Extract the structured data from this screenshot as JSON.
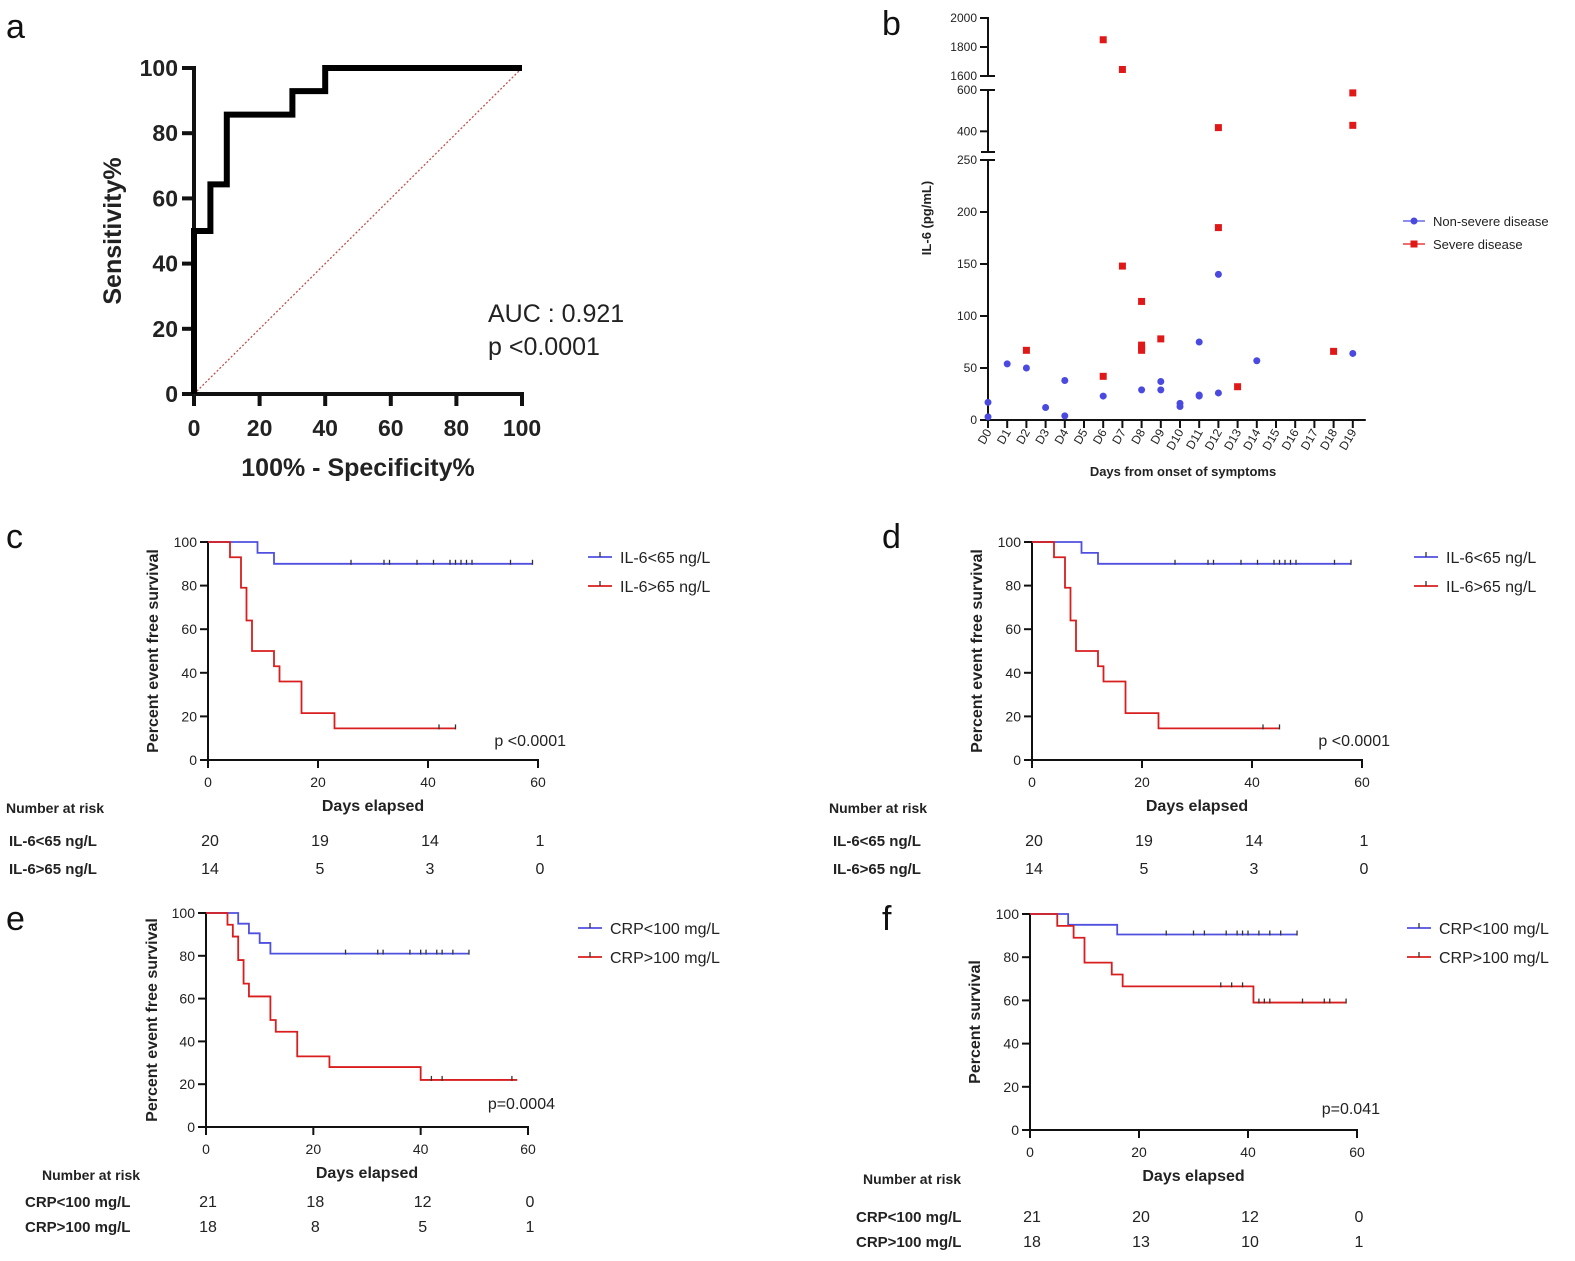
{
  "chart_data": [
    {
      "panel": "a",
      "type": "line",
      "xlabel": "100% - Specificity%",
      "ylabel": "Sensitivity%",
      "xlim": [
        0,
        100
      ],
      "ylim": [
        0,
        100
      ],
      "xticks": [
        0,
        20,
        40,
        60,
        80,
        100
      ],
      "yticks": [
        0,
        20,
        40,
        60,
        80,
        100
      ],
      "roc": [
        [
          0,
          0
        ],
        [
          0,
          50
        ],
        [
          5,
          50
        ],
        [
          5,
          64.3
        ],
        [
          10,
          64.3
        ],
        [
          10,
          85.7
        ],
        [
          30,
          85.7
        ],
        [
          30,
          92.9
        ],
        [
          40,
          92.9
        ],
        [
          40,
          100
        ],
        [
          100,
          100
        ]
      ],
      "reference_line": [
        [
          0,
          0
        ],
        [
          100,
          100
        ]
      ],
      "annotations": [
        "AUC : 0.921",
        "p <0.0001"
      ],
      "colors": {
        "roc": "#000000",
        "reference": "#c0504d"
      }
    },
    {
      "panel": "b",
      "type": "scatter",
      "xlabel": "Days from onset of symptoms",
      "ylabel": "IL-6 (pg/mL)",
      "categories": [
        "D0",
        "D1",
        "D2",
        "D3",
        "D4",
        "D5",
        "D6",
        "D7",
        "D8",
        "D9",
        "D10",
        "D11",
        "D12",
        "D13",
        "D14",
        "D15",
        "D16",
        "D17",
        "D18",
        "D19"
      ],
      "axis_segments": [
        {
          "range": [
            0,
            250
          ],
          "ticks": [
            0,
            50,
            100,
            150,
            200,
            250
          ]
        },
        {
          "range": [
            300,
            600
          ],
          "ticks": [
            400,
            600
          ]
        },
        {
          "range": [
            1600,
            2000
          ],
          "ticks": [
            1600,
            1800,
            2000
          ]
        }
      ],
      "legend_position": "right",
      "series": [
        {
          "name": "Non-severe disease",
          "color": "#4a4ae0",
          "marker": "circle",
          "points": [
            [
              0,
              17
            ],
            [
              0,
              3
            ],
            [
              1,
              54
            ],
            [
              2,
              50
            ],
            [
              3,
              12
            ],
            [
              4,
              38
            ],
            [
              4,
              4
            ],
            [
              6,
              23
            ],
            [
              8,
              29
            ],
            [
              9,
              37
            ],
            [
              9,
              29
            ],
            [
              10,
              16
            ],
            [
              10,
              13
            ],
            [
              11,
              75
            ],
            [
              11,
              24
            ],
            [
              11,
              23
            ],
            [
              12,
              140
            ],
            [
              12,
              26
            ],
            [
              14,
              57
            ],
            [
              19,
              64
            ]
          ]
        },
        {
          "name": "Severe disease",
          "color": "#e01818",
          "marker": "square",
          "points": [
            [
              2,
              67
            ],
            [
              6,
              42
            ],
            [
              6,
              1850
            ],
            [
              7,
              148
            ],
            [
              7,
              1645
            ],
            [
              8,
              114
            ],
            [
              8,
              72
            ],
            [
              8,
              69
            ],
            [
              8,
              67
            ],
            [
              9,
              78
            ],
            [
              12,
              185
            ],
            [
              12,
              418
            ],
            [
              13,
              32
            ],
            [
              18,
              66
            ],
            [
              19,
              586
            ],
            [
              19,
              429
            ]
          ]
        }
      ]
    },
    {
      "panel": "c",
      "type": "line",
      "xlabel": "Days elapsed",
      "ylabel": "Percent event free survival",
      "xlim": [
        0,
        60
      ],
      "ylim": [
        0,
        100
      ],
      "xticks": [
        0,
        20,
        40,
        60
      ],
      "yticks": [
        0,
        20,
        40,
        60,
        80,
        100
      ],
      "p_value": "p <0.0001",
      "legend_position": "right",
      "series": [
        {
          "name": "IL-6<65 ng/L",
          "color": "#5050e0",
          "steps": [
            [
              0,
              100
            ],
            [
              9,
              100
            ],
            [
              9,
              95
            ],
            [
              12,
              95
            ],
            [
              12,
              90
            ],
            [
              59,
              90
            ]
          ],
          "censors": [
            26,
            32,
            33,
            38,
            41,
            44,
            45,
            46,
            47,
            48,
            55,
            59
          ]
        },
        {
          "name": "IL-6>65 ng/L",
          "color": "#d81e1e",
          "steps": [
            [
              0,
              100
            ],
            [
              4,
              100
            ],
            [
              4,
              93
            ],
            [
              6,
              93
            ],
            [
              6,
              79
            ],
            [
              7,
              79
            ],
            [
              7,
              64
            ],
            [
              8,
              64
            ],
            [
              8,
              50
            ],
            [
              12,
              50
            ],
            [
              12,
              43
            ],
            [
              13,
              43
            ],
            [
              13,
              36
            ],
            [
              17,
              36
            ],
            [
              17,
              21.5
            ],
            [
              23,
              21.5
            ],
            [
              23,
              14.5
            ],
            [
              45,
              14.5
            ]
          ],
          "censors": [
            42,
            45
          ]
        }
      ],
      "risk_table": {
        "title": "Number at risk",
        "times": [
          0,
          20,
          40,
          60
        ],
        "rows": [
          {
            "label": "IL-6<65 ng/L",
            "values": [
              "20",
              "19",
              "14",
              "1"
            ]
          },
          {
            "label": "IL-6>65 ng/L",
            "values": [
              "14",
              "5",
              "3",
              "0"
            ]
          }
        ]
      }
    },
    {
      "panel": "d",
      "type": "line",
      "xlabel": "Days elapsed",
      "ylabel": "Percent event free survival",
      "xlim": [
        0,
        60
      ],
      "ylim": [
        0,
        100
      ],
      "xticks": [
        0,
        20,
        40,
        60
      ],
      "yticks": [
        0,
        20,
        40,
        60,
        80,
        100
      ],
      "p_value": "p <0.0001",
      "legend_position": "right",
      "series": [
        {
          "name": "IL-6<65 ng/L",
          "color": "#5050e0",
          "steps": [
            [
              0,
              100
            ],
            [
              9,
              100
            ],
            [
              9,
              95
            ],
            [
              12,
              95
            ],
            [
              12,
              90
            ],
            [
              58,
              90
            ]
          ],
          "censors": [
            26,
            32,
            33,
            38,
            41,
            44,
            45,
            46,
            47,
            48,
            55,
            58
          ]
        },
        {
          "name": "IL-6>65 ng/L",
          "color": "#d81e1e",
          "steps": [
            [
              0,
              100
            ],
            [
              4,
              100
            ],
            [
              4,
              93
            ],
            [
              6,
              93
            ],
            [
              6,
              79
            ],
            [
              7,
              79
            ],
            [
              7,
              64
            ],
            [
              8,
              64
            ],
            [
              8,
              50
            ],
            [
              12,
              50
            ],
            [
              12,
              43
            ],
            [
              13,
              43
            ],
            [
              13,
              36
            ],
            [
              17,
              36
            ],
            [
              17,
              21.5
            ],
            [
              23,
              21.5
            ],
            [
              23,
              14.5
            ],
            [
              45,
              14.5
            ]
          ],
          "censors": [
            42,
            45
          ]
        }
      ],
      "risk_table": {
        "title": "Number at risk",
        "times": [
          0,
          20,
          40,
          60
        ],
        "rows": [
          {
            "label": "IL-6<65 ng/L",
            "values": [
              "20",
              "19",
              "14",
              "1"
            ]
          },
          {
            "label": "IL-6>65 ng/L",
            "values": [
              "14",
              "5",
              "3",
              "0"
            ]
          }
        ]
      }
    },
    {
      "panel": "e",
      "type": "line",
      "xlabel": "Days elapsed",
      "ylabel": "Percent event free survival",
      "xlim": [
        0,
        60
      ],
      "ylim": [
        0,
        100
      ],
      "xticks": [
        0,
        20,
        40,
        60
      ],
      "yticks": [
        0,
        20,
        40,
        60,
        80,
        100
      ],
      "p_value": "p=0.0004",
      "legend_position": "right",
      "series": [
        {
          "name": "CRP<100 mg/L",
          "color": "#5050e0",
          "steps": [
            [
              0,
              100
            ],
            [
              6,
              100
            ],
            [
              6,
              95
            ],
            [
              8,
              95
            ],
            [
              8,
              90.5
            ],
            [
              10,
              90.5
            ],
            [
              10,
              86
            ],
            [
              12,
              86
            ],
            [
              12,
              81
            ],
            [
              49,
              81
            ]
          ],
          "censors": [
            26,
            32,
            33,
            38,
            40,
            41,
            43,
            44,
            46,
            49
          ]
        },
        {
          "name": "CRP>100 mg/L",
          "color": "#d81e1e",
          "steps": [
            [
              0,
              100
            ],
            [
              4,
              100
            ],
            [
              4,
              94.5
            ],
            [
              5,
              94.5
            ],
            [
              5,
              89
            ],
            [
              6,
              89
            ],
            [
              6,
              78
            ],
            [
              7,
              78
            ],
            [
              7,
              67
            ],
            [
              8,
              67
            ],
            [
              8,
              61
            ],
            [
              12,
              61
            ],
            [
              12,
              50
            ],
            [
              13,
              50
            ],
            [
              13,
              44.5
            ],
            [
              17,
              44.5
            ],
            [
              17,
              33
            ],
            [
              23,
              33
            ],
            [
              23,
              28
            ],
            [
              40,
              28
            ],
            [
              40,
              22
            ],
            [
              58,
              22
            ]
          ],
          "censors": [
            42,
            44,
            57
          ]
        }
      ],
      "risk_table": {
        "title": "Number at risk",
        "times": [
          0,
          20,
          40,
          60
        ],
        "rows": [
          {
            "label": "CRP<100 mg/L",
            "values": [
              "21",
              "18",
              "12",
              "0"
            ]
          },
          {
            "label": "CRP>100 mg/L",
            "values": [
              "18",
              "8",
              "5",
              "1"
            ]
          }
        ]
      }
    },
    {
      "panel": "f",
      "type": "line",
      "xlabel": "Days elapsed",
      "ylabel": "Percent survival",
      "xlim": [
        0,
        60
      ],
      "ylim": [
        0,
        100
      ],
      "xticks": [
        0,
        20,
        40,
        60
      ],
      "yticks": [
        0,
        20,
        40,
        60,
        80,
        100
      ],
      "p_value": "p=0.041",
      "legend_position": "right",
      "series": [
        {
          "name": "CRP<100 mg/L",
          "color": "#5050e0",
          "steps": [
            [
              0,
              100
            ],
            [
              7,
              100
            ],
            [
              7,
              95
            ],
            [
              16,
              95
            ],
            [
              16,
              90.5
            ],
            [
              49,
              90.5
            ]
          ],
          "censors": [
            25,
            30,
            32,
            36,
            38,
            39,
            40,
            42,
            44,
            46,
            49
          ]
        },
        {
          "name": "CRP>100 mg/L",
          "color": "#d81e1e",
          "steps": [
            [
              0,
              100
            ],
            [
              5,
              100
            ],
            [
              5,
              94.5
            ],
            [
              8,
              94.5
            ],
            [
              8,
              89
            ],
            [
              10,
              89
            ],
            [
              10,
              77.5
            ],
            [
              15,
              77.5
            ],
            [
              15,
              72
            ],
            [
              17,
              72
            ],
            [
              17,
              66.5
            ],
            [
              41,
              66.5
            ],
            [
              41,
              59
            ],
            [
              58,
              59
            ]
          ],
          "censors": [
            35,
            37,
            39,
            42,
            43,
            44,
            50,
            54,
            55,
            58
          ]
        }
      ],
      "risk_table": {
        "title": "Number at risk",
        "times": [
          0,
          20,
          40,
          60
        ],
        "rows": [
          {
            "label": "CRP<100 mg/L",
            "values": [
              "21",
              "20",
              "12",
              "0"
            ]
          },
          {
            "label": "CRP>100 mg/L",
            "values": [
              "18",
              "13",
              "10",
              "1"
            ]
          }
        ]
      }
    }
  ]
}
